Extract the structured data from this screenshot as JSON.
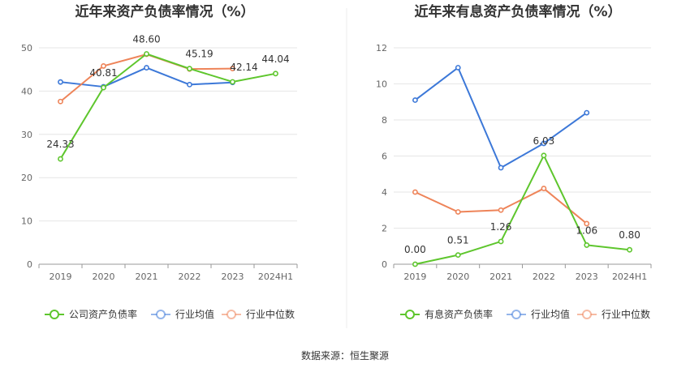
{
  "source": "数据来源：恒生聚源",
  "chart_data": [
    {
      "type": "line",
      "title": "近年来资产负债率情况（%）",
      "categories": [
        "2019",
        "2020",
        "2021",
        "2022",
        "2023",
        "2024H1"
      ],
      "ylim": [
        0,
        50
      ],
      "yticks": [
        0,
        10,
        20,
        30,
        40,
        50
      ],
      "grid": true,
      "legend_position": "bottom-center",
      "series": [
        {
          "name": "公司资产负债率",
          "color": "#5ec62d",
          "values": [
            24.33,
            40.81,
            48.6,
            45.19,
            42.14,
            44.04
          ],
          "labels": [
            "24.33",
            "40.81",
            "48.60",
            "45.19",
            "42.14",
            "44.04"
          ]
        },
        {
          "name": "行业均值",
          "color": "#3c78d8",
          "values": [
            42.1,
            41.0,
            45.4,
            41.5,
            42.0,
            null
          ]
        },
        {
          "name": "行业中位数",
          "color": "#ee8459",
          "values": [
            37.6,
            45.8,
            48.5,
            45.1,
            45.2,
            null
          ]
        }
      ]
    },
    {
      "type": "line",
      "title": "近年来有息资产负债率情况（%）",
      "categories": [
        "2019",
        "2020",
        "2021",
        "2022",
        "2023",
        "2024H1"
      ],
      "ylim": [
        0,
        12
      ],
      "yticks": [
        0,
        2,
        4,
        6,
        8,
        10,
        12
      ],
      "grid": true,
      "legend_position": "bottom-center",
      "series": [
        {
          "name": "有息资产负债率",
          "color": "#5ec62d",
          "values": [
            0.0,
            0.51,
            1.26,
            6.03,
            1.06,
            0.8
          ],
          "labels": [
            "0.00",
            "0.51",
            "1.26",
            "6.03",
            "1.06",
            "0.80"
          ]
        },
        {
          "name": "行业均值",
          "color": "#3c78d8",
          "values": [
            9.1,
            10.9,
            5.35,
            6.7,
            8.4,
            null
          ]
        },
        {
          "name": "行业中位数",
          "color": "#ee8459",
          "values": [
            4.0,
            2.9,
            3.0,
            4.2,
            2.25,
            null
          ]
        }
      ]
    }
  ]
}
